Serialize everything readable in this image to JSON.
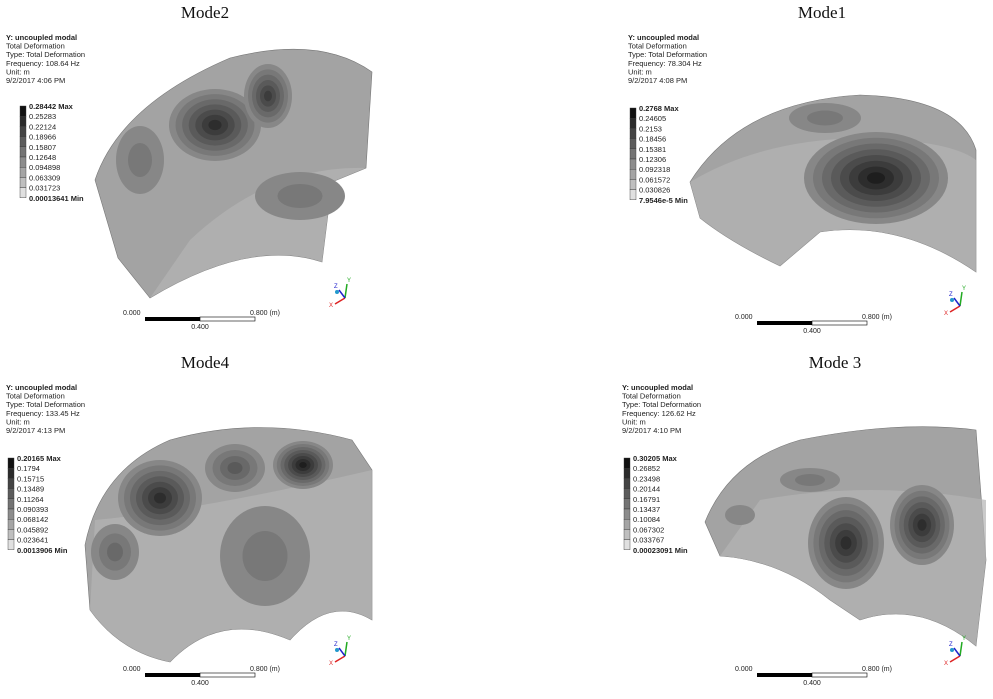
{
  "panels": [
    {
      "title": "Mode2",
      "info": [
        "Y: uncoupled modal",
        "Total Deformation",
        "Type: Total Deformation",
        "Frequency: 108.64 Hz",
        "Unit: m",
        "9/2/2017 4:06 PM"
      ],
      "legend": [
        "0.28442 Max",
        "0.25283",
        "0.22124",
        "0.18966",
        "0.15807",
        "0.12648",
        "0.094898",
        "0.063309",
        "0.031723",
        "0.00013641 Min"
      ],
      "scale": [
        "0.000",
        "0.800 (m)",
        "0.400"
      ],
      "triad": {
        "x": "X",
        "y": "Y",
        "z": "Z"
      }
    },
    {
      "title": "Mode1",
      "info": [
        "Y: uncoupled modal",
        "Total Deformation",
        "Type: Total Deformation",
        "Frequency: 78.304 Hz",
        "Unit: m",
        "9/2/2017 4:08 PM"
      ],
      "legend": [
        "0.2768 Max",
        "0.24605",
        "0.2153",
        "0.18456",
        "0.15381",
        "0.12306",
        "0.092318",
        "0.061572",
        "0.030826",
        "7.9546e-5 Min"
      ],
      "scale": [
        "0.000",
        "0.800 (m)",
        "0.400"
      ],
      "triad": {
        "x": "X",
        "y": "Y",
        "z": "Z"
      }
    },
    {
      "title": "Mode4",
      "info": [
        "Y: uncoupled modal",
        "Total Deformation",
        "Type: Total Deformation",
        "Frequency: 133.45 Hz",
        "Unit: m",
        "9/2/2017 4:13 PM"
      ],
      "legend": [
        "0.20165 Max",
        "0.1794",
        "0.15715",
        "0.13489",
        "0.11264",
        "0.090393",
        "0.068142",
        "0.045892",
        "0.023641",
        "0.0013906 Min"
      ],
      "scale": [
        "0.000",
        "0.800 (m)",
        "0.400"
      ],
      "triad": {
        "x": "X",
        "y": "Y",
        "z": "Z"
      }
    },
    {
      "title": "Mode 3",
      "info": [
        "Y: uncoupled modal",
        "Total Deformation",
        "Type: Total Deformation",
        "Frequency: 126.62 Hz",
        "Unit: m",
        "9/2/2017 4:10 PM"
      ],
      "legend": [
        "0.30205 Max",
        "0.26852",
        "0.23498",
        "0.20144",
        "0.16791",
        "0.13437",
        "0.10084",
        "0.067302",
        "0.033767",
        "0.00023091 Min"
      ],
      "scale": [
        "0.000",
        "0.800 (m)",
        "0.400"
      ],
      "triad": {
        "x": "X",
        "y": "Y",
        "z": "Z"
      }
    }
  ]
}
